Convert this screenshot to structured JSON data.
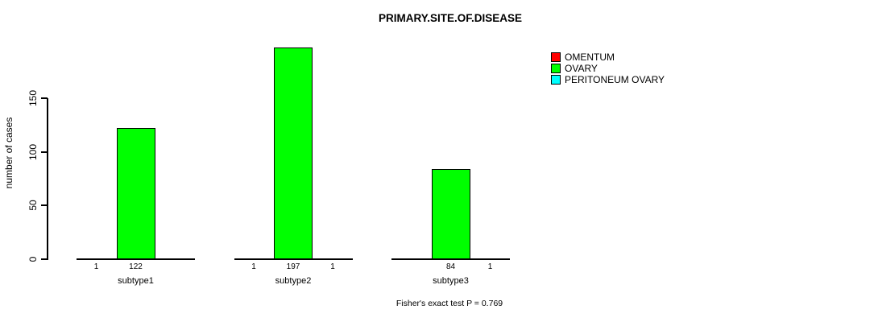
{
  "chart_data": {
    "type": "bar",
    "title": "PRIMARY.SITE.OF.DISEASE",
    "ylabel": "number of cases",
    "xlabel": "",
    "ylim": [
      0,
      200
    ],
    "yticks": [
      0,
      50,
      100,
      150
    ],
    "grid": false,
    "legend_position": "top-right",
    "categories": [
      "subtype1",
      "subtype2",
      "subtype3"
    ],
    "series": [
      {
        "name": "OMENTUM",
        "color": "#ff0000",
        "values": [
          1,
          1,
          null
        ]
      },
      {
        "name": "OVARY",
        "color": "#00ff00",
        "values": [
          122,
          197,
          84
        ]
      },
      {
        "name": "PERITONEUM OVARY",
        "color": "#00ffff",
        "values": [
          null,
          1,
          1
        ]
      }
    ],
    "legend": [
      {
        "label": "OMENTUM",
        "color": "#ff0000"
      },
      {
        "label": "OVARY",
        "color": "#00ff00"
      },
      {
        "label": "PERITONEUM OVARY",
        "color": "#00ffff"
      }
    ],
    "annotation": "Fisher's exact test P = 0.769",
    "background_color": "#ffffff",
    "axis_color": "#000000"
  }
}
